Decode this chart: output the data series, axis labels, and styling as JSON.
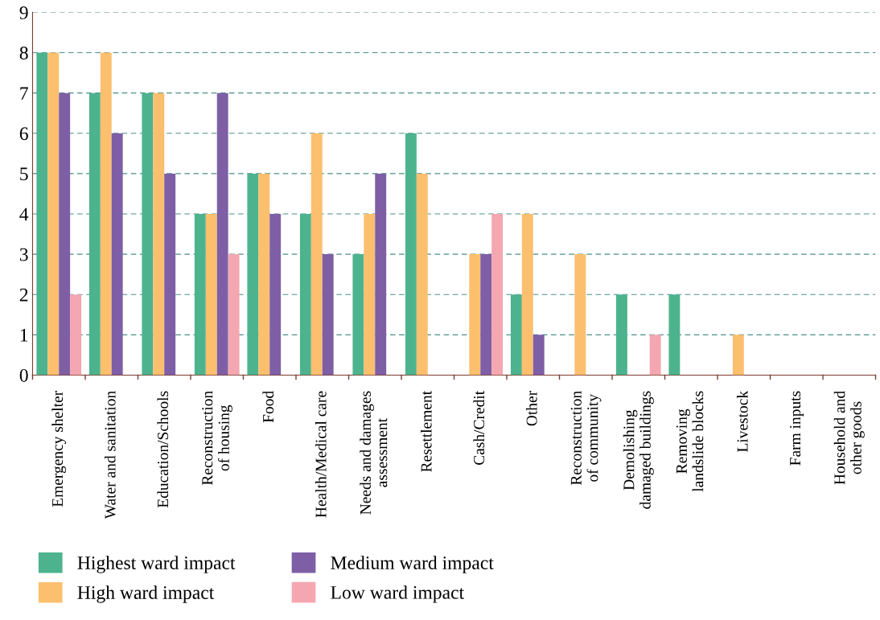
{
  "chart_data": {
    "type": "bar",
    "categories": [
      "Emergency shelter",
      "Water and sanitation",
      "Education/Schools",
      "Reconstruction\nof housing",
      "Food",
      "Health/Medical care",
      "Needs and damages\nassessment",
      "Resettlement",
      "Cash/Credit",
      "Other",
      "Reconstruction\nof community",
      "Demolishing\ndamaged buildings",
      "Removing\nlandslide blocks",
      "Livestock",
      "Farm inputs",
      "Household and\nother goods"
    ],
    "series": [
      {
        "name": "Highest ward impact",
        "color": "#4db38e",
        "values": [
          8,
          7,
          7,
          4,
          5,
          4,
          3,
          6,
          0,
          2,
          0,
          2,
          2,
          0,
          0,
          0
        ]
      },
      {
        "name": "High ward impact",
        "color": "#fbbf6e",
        "values": [
          8,
          8,
          7,
          4,
          5,
          6,
          4,
          5,
          3,
          4,
          3,
          0,
          0,
          1,
          0,
          0
        ]
      },
      {
        "name": "Medium ward impact",
        "color": "#7e5fa6",
        "values": [
          7,
          6,
          5,
          7,
          4,
          3,
          5,
          0,
          3,
          1,
          0,
          0,
          0,
          0,
          0,
          0
        ]
      },
      {
        "name": "Low ward impact",
        "color": "#f4a7b0",
        "values": [
          2,
          0,
          0,
          3,
          0,
          0,
          0,
          0,
          4,
          0,
          0,
          1,
          0,
          0,
          0,
          0
        ]
      }
    ],
    "ylim": [
      0,
      9
    ],
    "yticks": [
      0,
      1,
      2,
      3,
      4,
      5,
      6,
      7,
      8,
      9
    ],
    "grid": "y",
    "legend": "bottom"
  }
}
